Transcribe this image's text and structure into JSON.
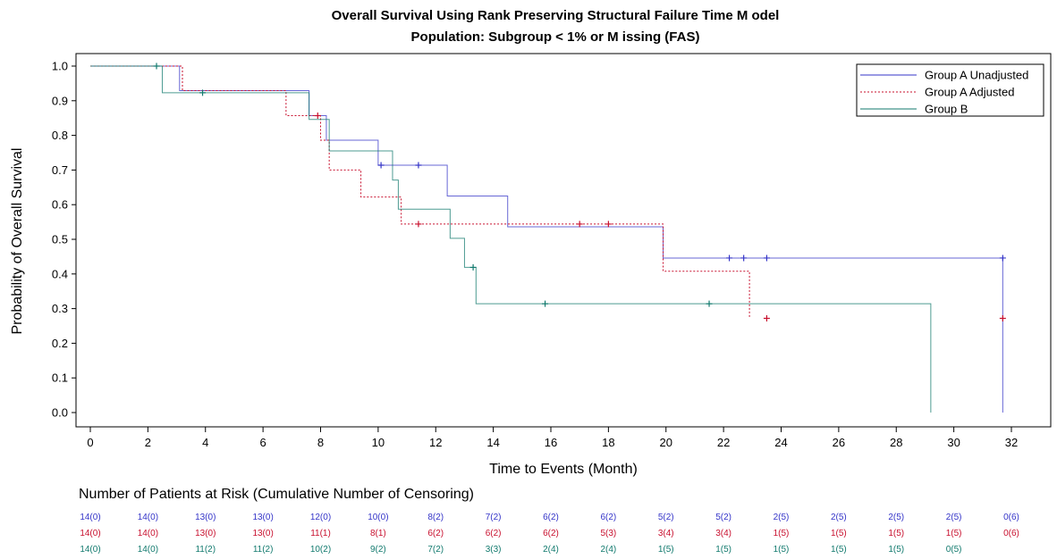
{
  "chart_data": {
    "type": "line",
    "title": "Overall Survival Using Rank Preserving Structural Failure Time M odel",
    "subtitle": "Population: Subgroup < 1%  or M issing (FAS)",
    "xlabel": "Time to Events (Month)",
    "ylabel": "Probability of Overall Survival",
    "xlim": [
      0,
      32
    ],
    "ylim": [
      0,
      1.0
    ],
    "xticks": [
      0,
      2,
      4,
      6,
      8,
      10,
      12,
      14,
      16,
      18,
      20,
      22,
      24,
      26,
      28,
      30,
      32
    ],
    "yticks": [
      0.0,
      0.1,
      0.2,
      0.3,
      0.4,
      0.5,
      0.6,
      0.7,
      0.8,
      0.9,
      1.0
    ],
    "grid": false,
    "legend_position": "top-right",
    "series": [
      {
        "name": "Group A Unadjusted",
        "color": "#3434c8",
        "style": "solid",
        "steps": [
          [
            0,
            1.0
          ],
          [
            3.1,
            0.929
          ],
          [
            7.6,
            0.857
          ],
          [
            8.2,
            0.786
          ],
          [
            10.0,
            0.714
          ],
          [
            12.4,
            0.625
          ],
          [
            14.5,
            0.536
          ],
          [
            19.9,
            0.446
          ],
          [
            31.7,
            0.0
          ]
        ],
        "censor": [
          [
            10.1,
            0.714
          ],
          [
            11.4,
            0.714
          ],
          [
            22.2,
            0.446
          ],
          [
            22.7,
            0.446
          ],
          [
            23.5,
            0.446
          ],
          [
            31.7,
            0.446
          ]
        ]
      },
      {
        "name": "Group A Adjusted",
        "color": "#c8102e",
        "style": "dotted",
        "steps": [
          [
            0,
            1.0
          ],
          [
            3.2,
            0.929
          ],
          [
            6.8,
            0.857
          ],
          [
            8.0,
            0.786
          ],
          [
            8.3,
            0.7
          ],
          [
            9.4,
            0.622
          ],
          [
            10.8,
            0.544
          ],
          [
            19.9,
            0.408
          ],
          [
            22.9,
            0.272
          ]
        ],
        "censor": [
          [
            7.9,
            0.857
          ],
          [
            11.4,
            0.544
          ],
          [
            17.0,
            0.544
          ],
          [
            18.0,
            0.544
          ],
          [
            23.5,
            0.272
          ],
          [
            31.7,
            0.272
          ]
        ]
      },
      {
        "name": "Group B",
        "color": "#127a6e",
        "style": "solid",
        "steps": [
          [
            0,
            1.0
          ],
          [
            2.5,
            0.923
          ],
          [
            7.6,
            0.846
          ],
          [
            8.3,
            0.755
          ],
          [
            10.5,
            0.671
          ],
          [
            10.7,
            0.587
          ],
          [
            12.5,
            0.503
          ],
          [
            13.0,
            0.419
          ],
          [
            13.4,
            0.314
          ],
          [
            29.2,
            0.0
          ]
        ],
        "censor": [
          [
            2.3,
            1.0
          ],
          [
            3.9,
            0.923
          ],
          [
            13.3,
            0.419
          ],
          [
            15.8,
            0.314
          ],
          [
            21.5,
            0.314
          ]
        ]
      }
    ],
    "risk_table": {
      "title": "Number of Patients at Risk (Cumulative Number of Censoring)",
      "times": [
        0,
        2,
        4,
        6,
        8,
        10,
        12,
        14,
        16,
        18,
        20,
        22,
        24,
        26,
        28,
        30,
        32
      ],
      "rows": [
        {
          "color": "#3434c8",
          "values": [
            "14(0)",
            "14(0)",
            "13(0)",
            "13(0)",
            "12(0)",
            "10(0)",
            "8(2)",
            "7(2)",
            "6(2)",
            "6(2)",
            "5(2)",
            "5(2)",
            "2(5)",
            "2(5)",
            "2(5)",
            "2(5)",
            "0(6)"
          ]
        },
        {
          "color": "#c8102e",
          "values": [
            "14(0)",
            "14(0)",
            "13(0)",
            "13(0)",
            "11(1)",
            "8(1)",
            "6(2)",
            "6(2)",
            "6(2)",
            "5(3)",
            "3(4)",
            "3(4)",
            "1(5)",
            "1(5)",
            "1(5)",
            "1(5)",
            "0(6)"
          ]
        },
        {
          "color": "#127a6e",
          "values": [
            "14(0)",
            "14(0)",
            "11(2)",
            "11(2)",
            "10(2)",
            "9(2)",
            "7(2)",
            "3(3)",
            "2(4)",
            "2(4)",
            "1(5)",
            "1(5)",
            "1(5)",
            "1(5)",
            "1(5)",
            "0(5)",
            ""
          ]
        }
      ]
    }
  }
}
